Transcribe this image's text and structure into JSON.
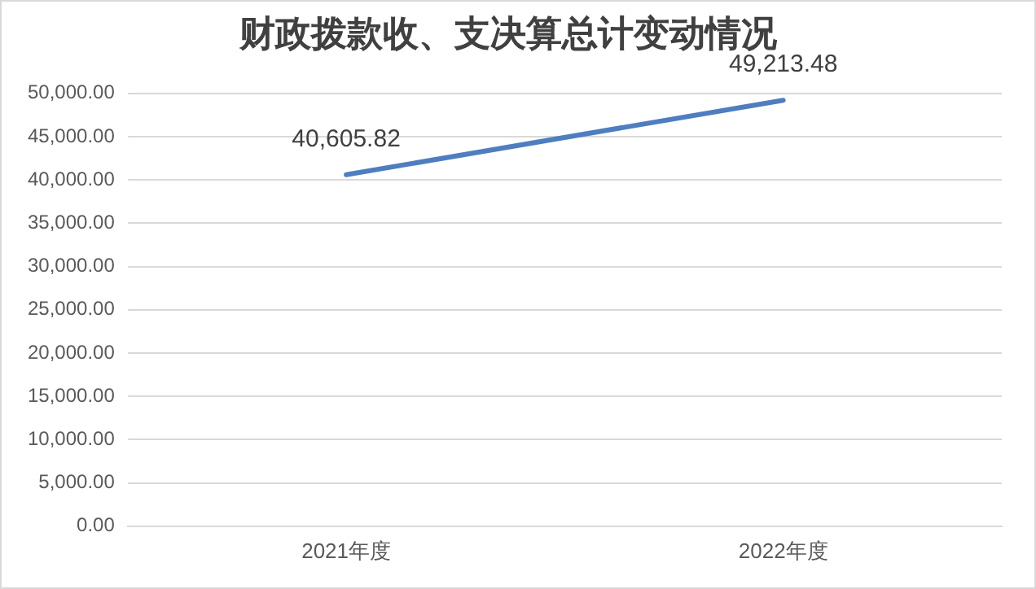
{
  "chart_data": {
    "type": "line",
    "title": "财政拨款收、支决算总计变动情况",
    "categories": [
      "2021年度",
      "2022年度"
    ],
    "series": [
      {
        "color": "#4f7ec0",
        "values": [
          40605.82,
          49213.48
        ],
        "value_labels": [
          "40,605.82",
          "49,213.48"
        ]
      }
    ],
    "ylim": [
      0,
      50000
    ],
    "yticks": [
      {
        "value": 0,
        "label": "0.00"
      },
      {
        "value": 5000,
        "label": "5,000.00"
      },
      {
        "value": 10000,
        "label": "10,000.00"
      },
      {
        "value": 15000,
        "label": "15,000.00"
      },
      {
        "value": 20000,
        "label": "20,000.00"
      },
      {
        "value": 25000,
        "label": "25,000.00"
      },
      {
        "value": 30000,
        "label": "30,000.00"
      },
      {
        "value": 35000,
        "label": "35,000.00"
      },
      {
        "value": 40000,
        "label": "40,000.00"
      },
      {
        "value": 45000,
        "label": "45,000.00"
      },
      {
        "value": 50000,
        "label": "50,000.00"
      }
    ],
    "grid": "y",
    "legend": false,
    "marker": "none",
    "line_style": "solid"
  }
}
